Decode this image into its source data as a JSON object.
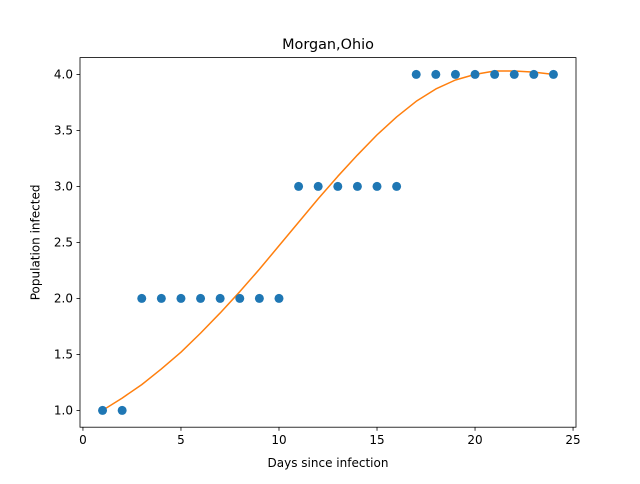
{
  "chart_data": {
    "type": "scatter",
    "title": "Morgan,Ohio",
    "xlabel": "Days since infection",
    "ylabel": "Population infected",
    "xlim": [
      -0.15,
      25.15
    ],
    "ylim": [
      0.85,
      4.15
    ],
    "xticks": [
      0,
      5,
      10,
      15,
      20,
      25
    ],
    "xtick_labels": [
      "0",
      "5",
      "10",
      "15",
      "20",
      "25"
    ],
    "yticks": [
      1.0,
      1.5,
      2.0,
      2.5,
      3.0,
      3.5,
      4.0
    ],
    "ytick_labels": [
      "1.0",
      "1.5",
      "2.0",
      "2.5",
      "3.0",
      "3.5",
      "4.0"
    ],
    "grid": false,
    "series": [
      {
        "kind": "points",
        "color": "#1f77b4",
        "x": [
          1,
          2,
          3,
          4,
          5,
          6,
          7,
          8,
          9,
          10,
          11,
          12,
          13,
          14,
          15,
          16,
          17,
          18,
          19,
          20,
          21,
          22,
          23,
          24
        ],
        "y": [
          1,
          1,
          2,
          2,
          2,
          2,
          2,
          2,
          2,
          2,
          3,
          3,
          3,
          3,
          3,
          3,
          4,
          4,
          4,
          4,
          4,
          4,
          4,
          4
        ]
      },
      {
        "kind": "line",
        "color": "#ff7f0e",
        "x": [
          1,
          2,
          3,
          4,
          5,
          6,
          7,
          8,
          9,
          10,
          11,
          12,
          13,
          14,
          15,
          16,
          17,
          18,
          19,
          20,
          21,
          22,
          23,
          24
        ],
        "y": [
          1.0,
          1.11,
          1.23,
          1.37,
          1.52,
          1.69,
          1.87,
          2.06,
          2.26,
          2.47,
          2.68,
          2.89,
          3.09,
          3.28,
          3.46,
          3.62,
          3.76,
          3.87,
          3.95,
          4.0,
          4.03,
          4.03,
          4.02,
          4.0
        ]
      }
    ]
  }
}
